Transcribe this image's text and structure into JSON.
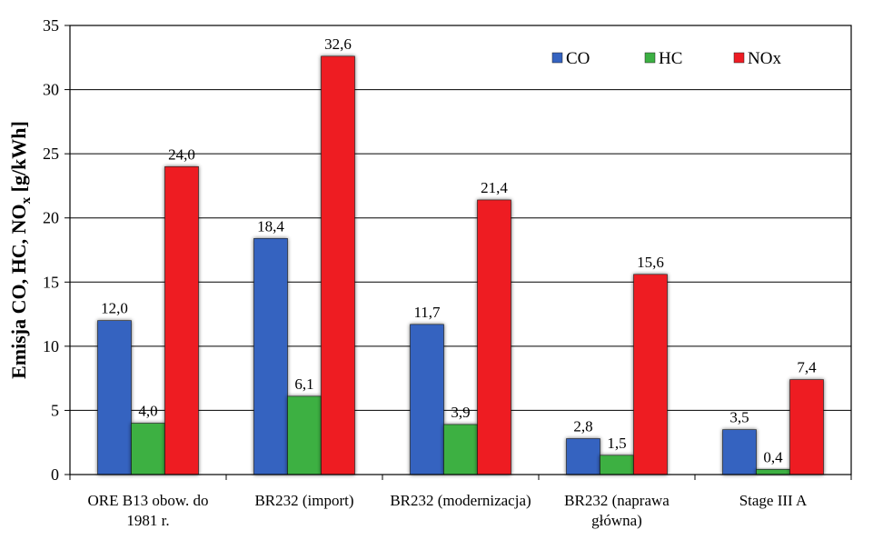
{
  "chart_data": {
    "type": "bar",
    "ylabel_main": "Emisja CO, HC, NO",
    "ylabel_sub": "x",
    "ylabel_unit": " [g/kWh]",
    "ylim": [
      0,
      35
    ],
    "yticks": [
      0,
      5,
      10,
      15,
      20,
      25,
      30,
      35
    ],
    "grid": true,
    "legend_position": "top-right",
    "categories": [
      [
        "ORE B13 obow. do",
        "1981 r."
      ],
      [
        "BR232 (import)"
      ],
      [
        "BR232 (modernizacja)"
      ],
      [
        "BR232 (naprawa",
        "główna)"
      ],
      [
        "Stage III A"
      ]
    ],
    "series": [
      {
        "name": "CO",
        "color": "#3563c0",
        "values": [
          12.0,
          18.4,
          11.7,
          2.8,
          3.5
        ],
        "labels": [
          "12,0",
          "18,4",
          "11,7",
          "2,8",
          "3,5"
        ]
      },
      {
        "name": "HC",
        "color": "#3cb043",
        "values": [
          4.0,
          6.1,
          3.9,
          1.5,
          0.4
        ],
        "labels": [
          "4,0",
          "6,1",
          "3,9",
          "1,5",
          "0,4"
        ]
      },
      {
        "name": "NOx",
        "color": "#ee1c24",
        "values": [
          24.0,
          32.6,
          21.4,
          15.6,
          7.4
        ],
        "labels": [
          "24,0",
          "32,6",
          "21,4",
          "15,6",
          "7,4"
        ]
      }
    ]
  }
}
